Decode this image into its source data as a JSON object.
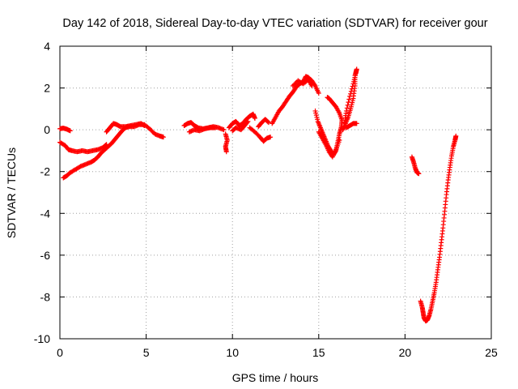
{
  "chart_data": {
    "type": "scatter",
    "title": "Day 142 of 2018, Sidereal Day-to-day VTEC variation (SDTVAR) for receiver gour",
    "xlabel": "GPS time / hours",
    "ylabel": "SDTVAR / TECUs",
    "xlim": [
      0,
      25
    ],
    "ylim": [
      -10,
      4
    ],
    "xticks": [
      "0",
      "5",
      "10",
      "15",
      "20",
      "25"
    ],
    "yticks": [
      "-10",
      "-8",
      "-6",
      "-4",
      "-2",
      "0",
      "2",
      "4"
    ],
    "grid": true,
    "marker": "plus",
    "color": "#ff0000",
    "series": [
      {
        "segments": [
          [
            [
              0.0,
              0.05
            ],
            [
              0.2,
              0.08
            ],
            [
              0.4,
              0.03
            ],
            [
              0.6,
              -0.05
            ]
          ],
          [
            [
              0.0,
              -0.6
            ],
            [
              0.3,
              -0.75
            ],
            [
              0.5,
              -0.95
            ],
            [
              0.7,
              -1.0
            ],
            [
              1.0,
              -1.05
            ],
            [
              1.3,
              -1.0
            ],
            [
              1.6,
              -1.05
            ],
            [
              1.9,
              -1.0
            ],
            [
              2.2,
              -0.95
            ],
            [
              2.5,
              -0.85
            ],
            [
              2.7,
              -0.7
            ]
          ],
          [
            [
              0.2,
              -2.3
            ],
            [
              0.4,
              -2.2
            ],
            [
              0.6,
              -2.05
            ],
            [
              0.9,
              -1.9
            ],
            [
              1.2,
              -1.75
            ],
            [
              1.5,
              -1.65
            ],
            [
              1.8,
              -1.55
            ],
            [
              2.0,
              -1.45
            ],
            [
              2.2,
              -1.3
            ],
            [
              2.4,
              -1.1
            ],
            [
              2.6,
              -0.95
            ],
            [
              2.8,
              -0.8
            ],
            [
              3.0,
              -0.65
            ],
            [
              3.2,
              -0.45
            ],
            [
              3.4,
              -0.25
            ],
            [
              3.6,
              -0.05
            ],
            [
              3.8,
              0.1
            ],
            [
              4.0,
              0.15
            ],
            [
              4.3,
              0.15
            ],
            [
              4.6,
              0.25
            ],
            [
              4.9,
              0.25
            ],
            [
              5.2,
              0.05
            ],
            [
              5.5,
              -0.2
            ],
            [
              5.8,
              -0.3
            ],
            [
              6.0,
              -0.35
            ]
          ],
          [
            [
              2.7,
              -0.1
            ],
            [
              2.9,
              0.1
            ],
            [
              3.1,
              0.3
            ],
            [
              3.3,
              0.25
            ],
            [
              3.5,
              0.15
            ],
            [
              3.8,
              0.15
            ],
            [
              4.1,
              0.2
            ],
            [
              4.4,
              0.25
            ],
            [
              4.7,
              0.3
            ],
            [
              4.9,
              0.2
            ]
          ],
          [
            [
              7.2,
              0.2
            ],
            [
              7.4,
              0.3
            ],
            [
              7.6,
              0.35
            ],
            [
              7.8,
              0.2
            ],
            [
              8.0,
              0.1
            ],
            [
              8.3,
              0.05
            ],
            [
              8.6,
              0.1
            ],
            [
              8.9,
              0.15
            ],
            [
              9.2,
              0.1
            ],
            [
              9.5,
              0.0
            ]
          ],
          [
            [
              7.5,
              -0.1
            ],
            [
              7.8,
              0.0
            ],
            [
              8.1,
              -0.05
            ],
            [
              8.4,
              0.05
            ],
            [
              8.7,
              0.1
            ],
            [
              9.0,
              0.1
            ]
          ],
          [
            [
              9.6,
              -0.2
            ],
            [
              9.7,
              -0.5
            ],
            [
              9.6,
              -0.8
            ],
            [
              9.65,
              -1.05
            ]
          ],
          [
            [
              9.8,
              0.1
            ],
            [
              10.0,
              0.3
            ],
            [
              10.2,
              0.4
            ],
            [
              10.4,
              0.2
            ],
            [
              10.6,
              0.3
            ],
            [
              10.8,
              0.5
            ],
            [
              11.0,
              0.65
            ],
            [
              11.2,
              0.75
            ],
            [
              11.3,
              0.55
            ]
          ],
          [
            [
              10.0,
              -0.05
            ],
            [
              10.2,
              0.1
            ],
            [
              10.5,
              0.0
            ],
            [
              10.7,
              0.2
            ],
            [
              10.9,
              0.4
            ]
          ],
          [
            [
              11.0,
              0.1
            ],
            [
              11.3,
              -0.1
            ],
            [
              11.6,
              -0.35
            ],
            [
              11.8,
              -0.55
            ],
            [
              12.0,
              -0.4
            ],
            [
              12.2,
              -0.35
            ]
          ],
          [
            [
              11.5,
              0.15
            ],
            [
              11.7,
              0.35
            ],
            [
              11.9,
              0.5
            ],
            [
              12.1,
              0.35
            ]
          ],
          [
            [
              12.3,
              0.3
            ],
            [
              12.5,
              0.6
            ],
            [
              12.7,
              0.9
            ],
            [
              12.9,
              1.1
            ],
            [
              13.1,
              1.35
            ],
            [
              13.3,
              1.6
            ],
            [
              13.5,
              1.8
            ],
            [
              13.7,
              2.05
            ],
            [
              13.9,
              2.2
            ],
            [
              14.1,
              2.3
            ],
            [
              14.25,
              2.55
            ],
            [
              14.4,
              2.5
            ],
            [
              14.6,
              2.35
            ],
            [
              14.8,
              2.1
            ],
            [
              15.0,
              1.75
            ]
          ],
          [
            [
              13.5,
              2.1
            ],
            [
              13.8,
              2.35
            ],
            [
              14.1,
              2.2
            ],
            [
              14.4,
              2.4
            ],
            [
              14.6,
              2.1
            ]
          ],
          [
            [
              14.8,
              0.9
            ],
            [
              14.95,
              0.4
            ],
            [
              15.1,
              0.1
            ],
            [
              15.25,
              -0.2
            ],
            [
              15.4,
              -0.5
            ],
            [
              15.55,
              -0.8
            ],
            [
              15.7,
              -1.0
            ],
            [
              15.85,
              -1.2
            ],
            [
              16.0,
              -1.0
            ],
            [
              16.1,
              -0.6
            ],
            [
              16.2,
              -0.2
            ],
            [
              16.3,
              0.1
            ],
            [
              16.35,
              0.45
            ],
            [
              16.2,
              0.8
            ],
            [
              16.0,
              1.1
            ],
            [
              15.8,
              1.3
            ],
            [
              15.6,
              1.5
            ],
            [
              15.5,
              1.55
            ]
          ],
          [
            [
              15.0,
              -0.1
            ],
            [
              15.2,
              -0.4
            ],
            [
              15.4,
              -0.7
            ],
            [
              15.6,
              -1.05
            ],
            [
              15.8,
              -1.3
            ],
            [
              16.0,
              -0.95
            ],
            [
              16.2,
              -0.5
            ]
          ],
          [
            [
              16.4,
              0.0
            ],
            [
              16.55,
              0.3
            ],
            [
              16.7,
              0.6
            ],
            [
              16.85,
              1.0
            ],
            [
              17.0,
              1.5
            ],
            [
              17.1,
              2.1
            ],
            [
              17.1,
              2.6
            ],
            [
              17.2,
              2.9
            ],
            [
              17.15,
              2.7
            ],
            [
              17.0,
              2.2
            ],
            [
              16.8,
              1.6
            ],
            [
              16.6,
              0.9
            ],
            [
              16.5,
              0.35
            ]
          ],
          [
            [
              16.6,
              0.1
            ],
            [
              16.8,
              0.2
            ],
            [
              17.0,
              0.3
            ],
            [
              17.2,
              0.3
            ]
          ],
          [
            [
              20.4,
              -1.3
            ],
            [
              20.5,
              -1.55
            ],
            [
              20.6,
              -1.85
            ],
            [
              20.7,
              -2.05
            ],
            [
              20.8,
              -2.1
            ]
          ],
          [
            [
              20.9,
              -8.2
            ],
            [
              21.0,
              -8.5
            ],
            [
              21.05,
              -8.75
            ],
            [
              21.1,
              -9.0
            ],
            [
              21.2,
              -9.15
            ],
            [
              21.3,
              -9.1
            ],
            [
              21.4,
              -8.9
            ],
            [
              21.5,
              -8.6
            ],
            [
              21.6,
              -8.2
            ],
            [
              21.7,
              -7.8
            ],
            [
              21.8,
              -7.3
            ],
            [
              21.9,
              -6.7
            ],
            [
              22.0,
              -6.1
            ],
            [
              22.1,
              -5.4
            ],
            [
              22.2,
              -4.7
            ],
            [
              22.3,
              -3.9
            ],
            [
              22.4,
              -3.1
            ],
            [
              22.5,
              -2.4
            ],
            [
              22.6,
              -1.8
            ],
            [
              22.7,
              -1.25
            ],
            [
              22.8,
              -0.8
            ],
            [
              22.9,
              -0.5
            ],
            [
              22.95,
              -0.3
            ]
          ]
        ]
      }
    ]
  }
}
